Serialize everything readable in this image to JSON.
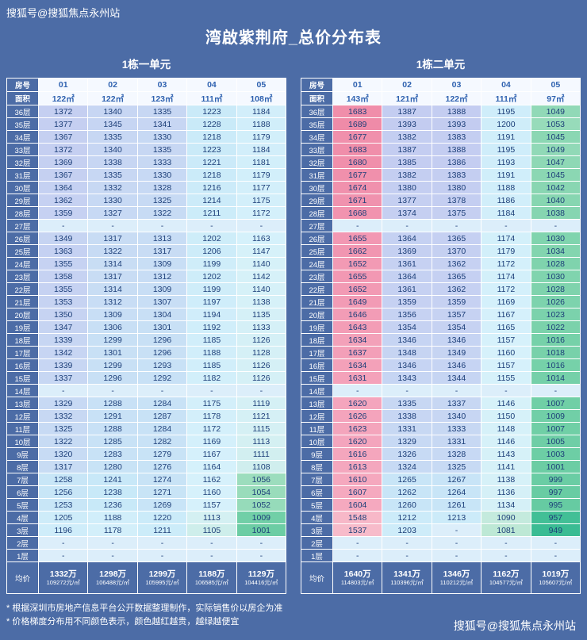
{
  "watermark_top": "搜狐号@搜狐焦点永州站",
  "watermark_bottom": "搜狐号@搜狐焦点永州站",
  "title": "湾啟紫荆府_总价分布表",
  "labels": {
    "room": "房号",
    "area": "面积",
    "avg": "均价"
  },
  "notes": [
    "* 根据深圳市房地产信息平台公开数据整理制作，实际销售价以房企为准",
    "* 价格梯度分布用不同颜色表示，颜色越红越贵，越绿越便宜"
  ],
  "colors": {
    "background": "#4c6ca6",
    "grid": "#ffffff",
    "header_cell_bg": "#f5f9ff",
    "header_text": "#2f62b0",
    "cell_text": "#1d3f79",
    "label_text": "#ffffff",
    "dash_cell": "#dceefa",
    "scale": [
      {
        "v": 949,
        "c": "#3abc93"
      },
      {
        "v": 1000,
        "c": "#6bcda4"
      },
      {
        "v": 1045,
        "c": "#8bd7b3"
      },
      {
        "v": 1075,
        "c": "#b9e7cf"
      },
      {
        "v": 1115,
        "c": "#d5f0f4"
      },
      {
        "v": 1160,
        "c": "#d6f1fb"
      },
      {
        "v": 1235,
        "c": "#c8e9f8"
      },
      {
        "v": 1305,
        "c": "#c8dff5"
      },
      {
        "v": 1355,
        "c": "#c6d2f2"
      },
      {
        "v": 1400,
        "c": "#c3cbf0"
      },
      {
        "v": 1520,
        "c": "#f8bfcd"
      },
      {
        "v": 1625,
        "c": "#f4a4bc"
      },
      {
        "v": 1690,
        "c": "#ef8ba8"
      }
    ]
  },
  "chart_data": [
    {
      "type": "heatmap",
      "title": "1栋一单元",
      "columns": [
        "01",
        "02",
        "03",
        "04",
        "05"
      ],
      "areas": [
        "122㎡",
        "122㎡",
        "123㎡",
        "111㎡",
        "108㎡"
      ],
      "floors": [
        "36层",
        "35层",
        "34层",
        "33层",
        "32层",
        "31层",
        "30层",
        "29层",
        "28层",
        "27层",
        "26层",
        "25层",
        "24层",
        "23层",
        "22层",
        "21层",
        "20层",
        "19层",
        "18层",
        "17层",
        "16层",
        "15层",
        "14层",
        "13层",
        "12层",
        "11层",
        "10层",
        "9层",
        "8层",
        "7层",
        "6层",
        "5层",
        "4层",
        "3层",
        "2层",
        "1层"
      ],
      "value_unit": "万",
      "rows": [
        [
          1372,
          1340,
          1335,
          1223,
          1184
        ],
        [
          1377,
          1345,
          1341,
          1228,
          1188
        ],
        [
          1367,
          1335,
          1330,
          1218,
          1179
        ],
        [
          1372,
          1340,
          1335,
          1223,
          1184
        ],
        [
          1369,
          1338,
          1333,
          1221,
          1181
        ],
        [
          1367,
          1335,
          1330,
          1218,
          1179
        ],
        [
          1364,
          1332,
          1328,
          1216,
          1177
        ],
        [
          1362,
          1330,
          1325,
          1214,
          1175
        ],
        [
          1359,
          1327,
          1322,
          1211,
          1172
        ],
        [
          "-",
          "-",
          "-",
          "-",
          "-"
        ],
        [
          1349,
          1317,
          1313,
          1202,
          1163
        ],
        [
          1363,
          1322,
          1317,
          1206,
          1147
        ],
        [
          1355,
          1314,
          1309,
          1199,
          1140
        ],
        [
          1358,
          1317,
          1312,
          1202,
          1142
        ],
        [
          1355,
          1314,
          1309,
          1199,
          1140
        ],
        [
          1353,
          1312,
          1307,
          1197,
          1138
        ],
        [
          1350,
          1309,
          1304,
          1194,
          1135
        ],
        [
          1347,
          1306,
          1301,
          1192,
          1133
        ],
        [
          1339,
          1299,
          1296,
          1185,
          1126
        ],
        [
          1342,
          1301,
          1296,
          1188,
          1128
        ],
        [
          1339,
          1299,
          1293,
          1185,
          1126
        ],
        [
          1337,
          1296,
          1292,
          1182,
          1126
        ],
        [
          "-",
          "-",
          "-",
          "-",
          "-"
        ],
        [
          1329,
          1288,
          1284,
          1175,
          1119
        ],
        [
          1332,
          1291,
          1287,
          1178,
          1121
        ],
        [
          1325,
          1288,
          1284,
          1172,
          1115
        ],
        [
          1322,
          1285,
          1282,
          1169,
          1113
        ],
        [
          1320,
          1283,
          1279,
          1167,
          1111
        ],
        [
          1317,
          1280,
          1276,
          1164,
          1108
        ],
        [
          1258,
          1241,
          1274,
          1162,
          1056
        ],
        [
          1256,
          1238,
          1271,
          1160,
          1054
        ],
        [
          1253,
          1236,
          1269,
          1157,
          1052
        ],
        [
          1205,
          1188,
          1220,
          1113,
          1009
        ],
        [
          1196,
          1178,
          1211,
          1105,
          1001
        ],
        [
          "-",
          "-",
          "-",
          "-",
          "-"
        ],
        [
          "-",
          "-",
          "-",
          "-",
          "-"
        ]
      ],
      "average": [
        {
          "total": "1332万",
          "per": "109272元/㎡"
        },
        {
          "total": "1298万",
          "per": "106488元/㎡"
        },
        {
          "total": "1299万",
          "per": "105995元/㎡"
        },
        {
          "total": "1188万",
          "per": "106585元/㎡"
        },
        {
          "total": "1129万",
          "per": "104416元/㎡"
        }
      ]
    },
    {
      "type": "heatmap",
      "title": "1栋二单元",
      "columns": [
        "01",
        "02",
        "03",
        "04",
        "05"
      ],
      "areas": [
        "143㎡",
        "121㎡",
        "122㎡",
        "111㎡",
        "97㎡"
      ],
      "floors": [
        "36层",
        "35层",
        "34层",
        "33层",
        "32层",
        "31层",
        "30层",
        "29层",
        "28层",
        "27层",
        "26层",
        "25层",
        "24层",
        "23层",
        "22层",
        "21层",
        "20层",
        "19层",
        "18层",
        "17层",
        "16层",
        "15层",
        "14层",
        "13层",
        "12层",
        "11层",
        "10层",
        "9层",
        "8层",
        "7层",
        "6层",
        "5层",
        "4层",
        "3层",
        "2层",
        "1层"
      ],
      "value_unit": "万",
      "rows": [
        [
          1683,
          1387,
          1388,
          1195,
          1049
        ],
        [
          1689,
          1393,
          1393,
          1200,
          1053
        ],
        [
          1677,
          1382,
          1383,
          1191,
          1045
        ],
        [
          1683,
          1387,
          1388,
          1195,
          1049
        ],
        [
          1680,
          1385,
          1386,
          1193,
          1047
        ],
        [
          1677,
          1382,
          1383,
          1191,
          1045
        ],
        [
          1674,
          1380,
          1380,
          1188,
          1042
        ],
        [
          1671,
          1377,
          1378,
          1186,
          1040
        ],
        [
          1668,
          1374,
          1375,
          1184,
          1038
        ],
        [
          "-",
          "-",
          "-",
          "-",
          "-"
        ],
        [
          1655,
          1364,
          1365,
          1174,
          1030
        ],
        [
          1662,
          1369,
          1370,
          1179,
          1034
        ],
        [
          1652,
          1361,
          1362,
          1172,
          1028
        ],
        [
          1655,
          1364,
          1365,
          1174,
          1030
        ],
        [
          1652,
          1361,
          1362,
          1172,
          1028
        ],
        [
          1649,
          1359,
          1359,
          1169,
          1026
        ],
        [
          1646,
          1356,
          1357,
          1167,
          1023
        ],
        [
          1643,
          1354,
          1354,
          1165,
          1022
        ],
        [
          1634,
          1346,
          1346,
          1157,
          1016
        ],
        [
          1637,
          1348,
          1349,
          1160,
          1018
        ],
        [
          1634,
          1346,
          1346,
          1157,
          1016
        ],
        [
          1631,
          1343,
          1344,
          1155,
          1014
        ],
        [
          "-",
          "-",
          "-",
          "-",
          "-"
        ],
        [
          1620,
          1335,
          1337,
          1146,
          1007
        ],
        [
          1626,
          1338,
          1340,
          1150,
          1009
        ],
        [
          1623,
          1331,
          1333,
          1148,
          1007
        ],
        [
          1620,
          1329,
          1331,
          1146,
          1005
        ],
        [
          1616,
          1326,
          1328,
          1143,
          1003
        ],
        [
          1613,
          1324,
          1325,
          1141,
          1001
        ],
        [
          1610,
          1265,
          1267,
          1138,
          999
        ],
        [
          1607,
          1262,
          1264,
          1136,
          997
        ],
        [
          1604,
          1260,
          1261,
          1134,
          995
        ],
        [
          1548,
          1212,
          1213,
          1090,
          957
        ],
        [
          1537,
          1203,
          "-",
          1081,
          949
        ],
        [
          "-",
          "-",
          "-",
          "-",
          "-"
        ],
        [
          "-",
          "-",
          "-",
          "-",
          "-"
        ]
      ],
      "average": [
        {
          "total": "1640万",
          "per": "114803元/㎡"
        },
        {
          "total": "1341万",
          "per": "110396元/㎡"
        },
        {
          "total": "1346万",
          "per": "110212元/㎡"
        },
        {
          "total": "1162万",
          "per": "104577元/㎡"
        },
        {
          "total": "1019万",
          "per": "105607元/㎡"
        }
      ]
    }
  ]
}
